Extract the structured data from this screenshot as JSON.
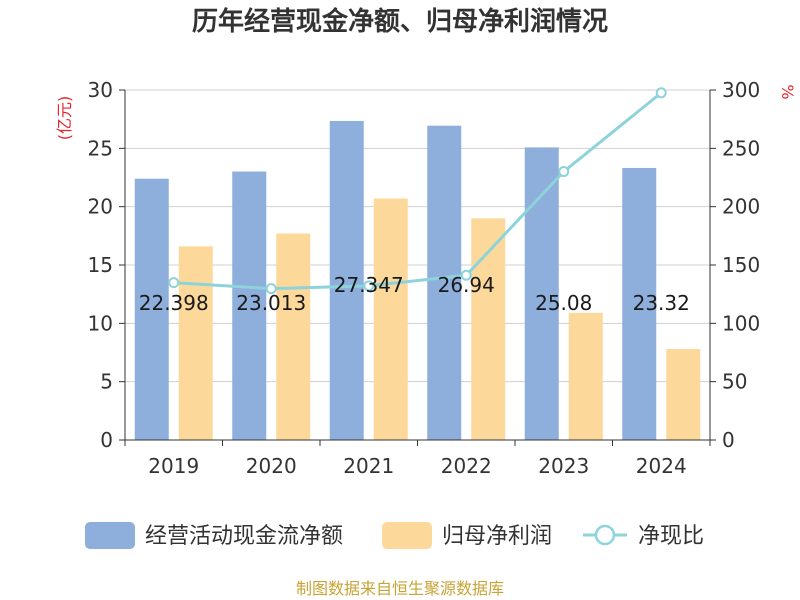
{
  "chart_data": {
    "type": "bar",
    "title": "历年经营现金净额、归母净利润情况",
    "categories": [
      "2019",
      "2020",
      "2021",
      "2022",
      "2023",
      "2024"
    ],
    "y_left": {
      "unit": "(亿元)",
      "ylim": [
        0,
        30
      ],
      "ticks": [
        "0",
        "5",
        "10",
        "15",
        "20",
        "25",
        "30"
      ]
    },
    "y_right": {
      "unit": "%",
      "ylim": [
        0,
        300
      ],
      "ticks": [
        "0",
        "50",
        "100",
        "150",
        "200",
        "250",
        "300"
      ]
    },
    "series": [
      {
        "name": "经营活动现金流净额",
        "type": "bar",
        "axis": "left",
        "color": "#8eaedc",
        "values": [
          22.398,
          23.013,
          27.347,
          26.94,
          25.08,
          23.32
        ],
        "labels": [
          "22.398",
          "23.013",
          "27.347",
          "26.94",
          "25.08",
          "23.32"
        ]
      },
      {
        "name": "归母净利润",
        "type": "bar",
        "axis": "left",
        "color": "#fdd89b",
        "values": [
          16.6,
          17.7,
          20.7,
          19.0,
          10.9,
          7.8
        ]
      },
      {
        "name": "净现比",
        "type": "line",
        "axis": "right",
        "color": "#8dd3da",
        "values": [
          134.9,
          129.8,
          132.1,
          141.2,
          230.1,
          297.6
        ]
      }
    ],
    "grid": true,
    "legend_position": "bottom"
  },
  "source": "制图数据来自恒生聚源数据库"
}
